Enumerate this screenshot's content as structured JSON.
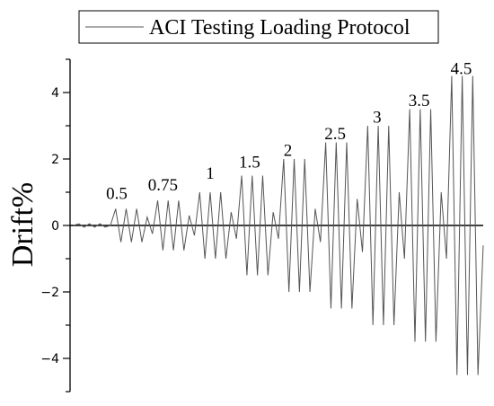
{
  "chart_data": {
    "type": "line",
    "title": "",
    "xlabel": "",
    "ylabel": "Drift%",
    "ylim": [
      -5.0,
      5.0
    ],
    "yticks": [
      "−4",
      "−2",
      "0",
      "2",
      "4"
    ],
    "grid": false,
    "legend_position": "top",
    "series": [
      {
        "name": "ACI Testing Loading Protocol",
        "color": "#555555",
        "y": [
          0,
          0.05,
          -0.05,
          0.05,
          -0.05,
          0.05,
          -0.05,
          0,
          0.5,
          -0.5,
          0.5,
          -0.5,
          0.5,
          -0.5,
          0.25,
          -0.25,
          0.75,
          -0.75,
          0.75,
          -0.75,
          0.75,
          -0.75,
          0.3,
          -0.3,
          1.0,
          -1.0,
          1.0,
          -1.0,
          1.0,
          -1.0,
          0.4,
          -0.4,
          1.5,
          -1.5,
          1.5,
          -1.5,
          1.5,
          -1.5,
          0.4,
          -0.4,
          2.0,
          -2.0,
          2.0,
          -2.0,
          2.0,
          -2.0,
          0.5,
          -0.5,
          2.5,
          -2.5,
          2.5,
          -2.5,
          2.5,
          -2.5,
          0.8,
          -0.8,
          3.0,
          -3.0,
          3.0,
          -3.0,
          3.0,
          -3.0,
          1.0,
          -1.0,
          3.5,
          -3.5,
          3.5,
          -3.5,
          3.5,
          -3.5,
          1.0,
          -1.0,
          4.5,
          -4.5,
          4.5,
          -4.5,
          4.5,
          -4.5,
          -0.6
        ]
      }
    ],
    "annotations": [
      {
        "text": "0.5",
        "x": 8.2,
        "y": 0.8
      },
      {
        "text": "0.75",
        "x": 17.0,
        "y": 1.05
      },
      {
        "text": "1",
        "x": 26.0,
        "y": 1.4
      },
      {
        "text": "1.5",
        "x": 33.5,
        "y": 1.75
      },
      {
        "text": "2",
        "x": 40.8,
        "y": 2.1
      },
      {
        "text": "2.5",
        "x": 49.8,
        "y": 2.6
      },
      {
        "text": "3",
        "x": 57.8,
        "y": 3.1
      },
      {
        "text": "3.5",
        "x": 65.8,
        "y": 3.6
      },
      {
        "text": "4.5",
        "x": 73.8,
        "y": 4.55
      }
    ]
  }
}
